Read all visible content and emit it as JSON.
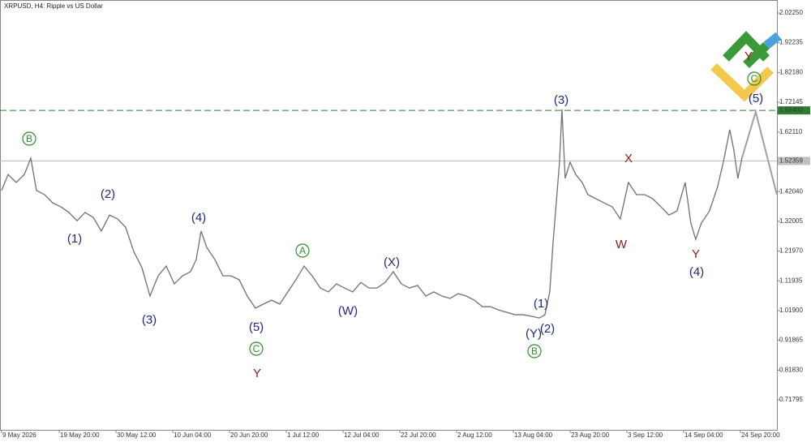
{
  "chart_data": {
    "type": "line",
    "title": "XRPUSD, H4:  Ripple vs US Dollar",
    "color": "#707070",
    "x": [
      0,
      1.22,
      2.74,
      4.27,
      5.49,
      6.55,
      8.08,
      9.6,
      11.12,
      12.65,
      14.17,
      15.7,
      17.22,
      18.74,
      20.27,
      21.79,
      23.31,
      24.84,
      26.36,
      27.89,
      29.41,
      30.93,
      32.46,
      33.98,
      35.5,
      36.57,
      37.49,
      38.55,
      40.08,
      41.6,
      43.12,
      44.65,
      46.17,
      47.7,
      49.22,
      50.74,
      52.27,
      53.79,
      55.31,
      56.84,
      58.36,
      59.89,
      61.41,
      62.93,
      64.46,
      65.98,
      67.5,
      69.03,
      70.55,
      72.08,
      73.6,
      75.12,
      76.65,
      78.17,
      79.7,
      81.22,
      82.74,
      84.27,
      85.79,
      87.31,
      88.84,
      90.36,
      91.89,
      93.41,
      94.93,
      96.46,
      97.98,
      99.5,
      101.03,
      102.1,
      103.01,
      103.62,
      104.23,
      104.84,
      105.3,
      105.9,
      106.83,
      107.89,
      109.11,
      110.17,
      111.7,
      113.22,
      114.74,
      116.27,
      117.79,
      119.31,
      120.84,
      122.36,
      123.89,
      125.41,
      126.93,
      128.46,
      129.52,
      130.44,
      131.5,
      133.03,
      134.55,
      135.62,
      136.84,
      137.6,
      138.36,
      139.12
    ],
    "values": [
      1.424,
      1.478,
      1.451,
      1.478,
      1.533,
      1.424,
      1.41,
      1.382,
      1.369,
      1.35,
      1.322,
      1.35,
      1.333,
      1.287,
      1.341,
      1.328,
      1.3,
      1.218,
      1.164,
      1.068,
      1.136,
      1.169,
      1.109,
      1.136,
      1.15,
      1.191,
      1.287,
      1.232,
      1.191,
      1.136,
      1.136,
      1.123,
      1.068,
      1.027,
      1.041,
      1.054,
      1.041,
      1.082,
      1.123,
      1.169,
      1.136,
      1.095,
      1.082,
      1.109,
      1.095,
      1.082,
      1.114,
      1.095,
      1.095,
      1.114,
      1.15,
      1.109,
      1.095,
      1.104,
      1.068,
      1.082,
      1.068,
      1.06,
      1.076,
      1.068,
      1.054,
      1.032,
      1.032,
      1.021,
      1.013,
      1.005,
      1.005,
      1.0,
      0.994,
      1.005,
      1.082,
      1.246,
      1.382,
      1.519,
      1.697,
      1.465,
      1.519,
      1.478,
      1.451,
      1.41,
      1.396,
      1.382,
      1.369,
      1.328,
      1.451,
      1.41,
      1.41,
      1.396,
      1.369,
      1.341,
      1.355,
      1.451,
      1.314,
      1.259,
      1.314,
      1.355,
      1.437,
      1.519,
      1.629,
      1.56,
      1.465,
      1.533
    ],
    "projection": {
      "color": "#a0a0a0",
      "x": [
        139.12,
        141.71,
        145.68
      ],
      "values": [
        1.533,
        1.689,
        1.41
      ]
    },
    "levels": [
      {
        "value": 1.694,
        "label": "1.69400",
        "color": "#2e7d32"
      },
      {
        "value": 1.52359,
        "label": "1.52359",
        "color": "#c0c0c0"
      }
    ],
    "xlim": [
      -0.3,
      145.7
    ],
    "ylim": [
      0.6168,
      2.0663
    ],
    "xticks": [
      {
        "value": 0,
        "label": "9 May 2026"
      },
      {
        "value": 10.833,
        "label": "19 May 20:00"
      },
      {
        "value": 21.5,
        "label": "30 May 12:00"
      },
      {
        "value": 32.167,
        "label": "10 Jun 04:00"
      },
      {
        "value": 42.833,
        "label": "20 Jun 20:00"
      },
      {
        "value": 53.5,
        "label": "1 Jul 12:00"
      },
      {
        "value": 64.167,
        "label": "12 Jul 04:00"
      },
      {
        "value": 74.833,
        "label": "22 Jul 20:00"
      },
      {
        "value": 85.5,
        "label": "2 Aug 12:00"
      },
      {
        "value": 96.167,
        "label": "13 Aug 04:00"
      },
      {
        "value": 106.833,
        "label": "23 Aug 20:00"
      },
      {
        "value": 117.5,
        "label": "3 Sep 12:00"
      },
      {
        "value": 128.167,
        "label": "14 Sep 04:00"
      },
      {
        "value": 138.833,
        "label": "24 Sep 20:00"
      }
    ],
    "yticks": [
      {
        "value": 2.0225,
        "label": "2.02250"
      },
      {
        "value": 1.92235,
        "label": "1.92235"
      },
      {
        "value": 1.8218,
        "label": "1.82180"
      },
      {
        "value": 1.72145,
        "label": "1.72145"
      },
      {
        "value": 1.6211,
        "label": "1.62110"
      },
      {
        "value": 1.4204,
        "label": "1.42040"
      },
      {
        "value": 1.32005,
        "label": "1.32005"
      },
      {
        "value": 1.2197,
        "label": "1.21970"
      },
      {
        "value": 1.11935,
        "label": "1.11935"
      },
      {
        "value": 1.019,
        "label": "1.01900"
      },
      {
        "value": 0.91865,
        "label": "0.91865"
      },
      {
        "value": 0.8183,
        "label": "0.81830"
      },
      {
        "value": 0.71795,
        "label": "0.71795"
      }
    ],
    "annotations": [
      "B",
      "(1)",
      "(2)",
      "(3)",
      "(4)",
      "(5)",
      "C",
      "Y",
      "A",
      "(W)",
      "(X)",
      "(Y)",
      "(2)",
      "(1)",
      "B",
      "(3)",
      "X",
      "W",
      "Y",
      "(4)",
      "(5)",
      "C",
      "Y"
    ]
  }
}
